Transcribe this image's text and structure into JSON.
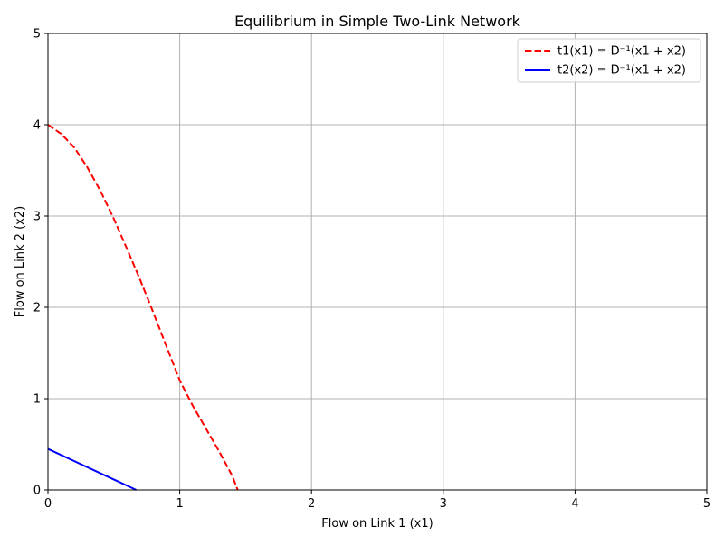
{
  "chart_data": {
    "type": "line",
    "title": "Equilibrium in Simple Two-Link Network",
    "xlabel": "Flow on Link 1 (x1)",
    "ylabel": "Flow on Link 2 (x2)",
    "xlim": [
      0,
      5
    ],
    "ylim": [
      0,
      5
    ],
    "xticks": [
      "0",
      "1",
      "2",
      "3",
      "4",
      "5"
    ],
    "yticks": [
      "0",
      "1",
      "2",
      "3",
      "4",
      "5"
    ],
    "grid": true,
    "legend_position": "top-right",
    "series": [
      {
        "name": "t1(x1) = D⁻¹(x1 + x2)",
        "color": "#ff0000",
        "style": "dashed",
        "x": [
          0.0,
          0.1,
          0.2,
          0.3,
          0.4,
          0.5,
          0.6,
          0.7,
          0.8,
          0.9,
          1.0,
          1.1,
          1.2,
          1.3,
          1.4,
          1.44
        ],
        "y": [
          4.0,
          3.9,
          3.75,
          3.53,
          3.27,
          2.97,
          2.64,
          2.3,
          1.94,
          1.57,
          1.2,
          0.92,
          0.67,
          0.42,
          0.15,
          0.0
        ]
      },
      {
        "name": "t2(x2) = D⁻¹(x1 + x2)",
        "color": "#0000ff",
        "style": "solid",
        "x": [
          0.0,
          0.67
        ],
        "y": [
          0.45,
          0.0
        ]
      }
    ]
  }
}
